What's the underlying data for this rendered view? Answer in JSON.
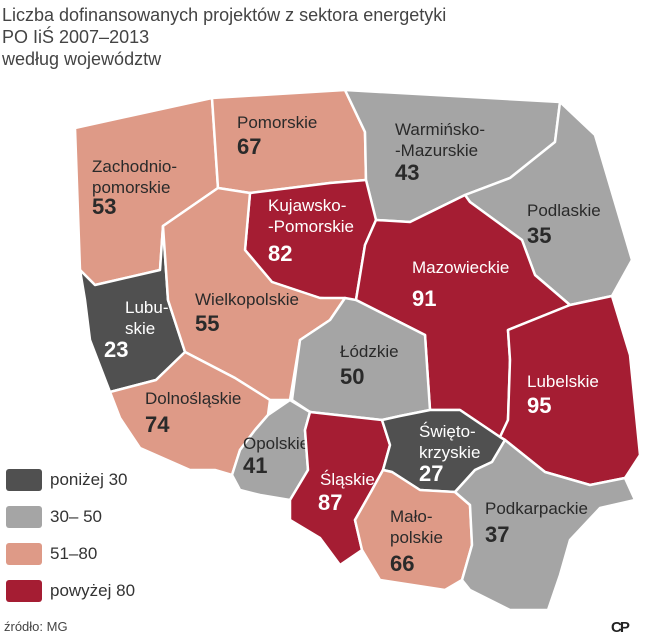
{
  "title": {
    "line1": "Liczba dofinansowanych projektów z sektora energetyki",
    "line2": "PO IiŚ 2007–2013",
    "line3": "według województw"
  },
  "colors": {
    "below_30": "#505050",
    "30_50": "#a5a5a5",
    "51_80": "#de9a87",
    "above_80": "#a51d33"
  },
  "regions": {
    "zachodniopomorskie": {
      "name_lines": [
        "Zachodnio-",
        "pomorskie"
      ],
      "value": "53",
      "category": "51_80"
    },
    "pomorskie": {
      "name_lines": [
        "Pomorskie"
      ],
      "value": "67",
      "category": "51_80"
    },
    "warminsko_mazurskie": {
      "name_lines": [
        "Warmińsko-",
        "-Mazurskie"
      ],
      "value": "43",
      "category": "30_50"
    },
    "podlaskie": {
      "name_lines": [
        "Podlaskie"
      ],
      "value": "35",
      "category": "30_50"
    },
    "kujawsko_pomorskie": {
      "name_lines": [
        "Kujawsko-",
        "-Pomorskie"
      ],
      "value": "82",
      "category": "above_80"
    },
    "mazowieckie": {
      "name_lines": [
        "Mazowieckie"
      ],
      "value": "91",
      "category": "above_80"
    },
    "lubuskie": {
      "name_lines": [
        "Lubu-",
        "skie"
      ],
      "value": "23",
      "category": "below_30"
    },
    "wielkopolskie": {
      "name_lines": [
        "Wielkopolskie"
      ],
      "value": "55",
      "category": "51_80"
    },
    "lodzkie": {
      "name_lines": [
        "Łódzkie"
      ],
      "value": "50",
      "category": "30_50"
    },
    "lubelskie": {
      "name_lines": [
        "Lubelskie"
      ],
      "value": "95",
      "category": "above_80"
    },
    "dolnoslaskie": {
      "name_lines": [
        "Dolnośląskie"
      ],
      "value": "74",
      "category": "51_80"
    },
    "opolskie": {
      "name_lines": [
        "Opolskie"
      ],
      "value": "41",
      "category": "30_50"
    },
    "slaskie": {
      "name_lines": [
        "Śląskie"
      ],
      "value": "87",
      "category": "above_80"
    },
    "swietokrzyskie": {
      "name_lines": [
        "Święto-",
        "krzyskie"
      ],
      "value": "27",
      "category": "below_30"
    },
    "malopolskie": {
      "name_lines": [
        "Mało-",
        "polskie"
      ],
      "value": "66",
      "category": "51_80"
    },
    "podkarpackie": {
      "name_lines": [
        "Podkarpackie"
      ],
      "value": "37",
      "category": "30_50"
    }
  },
  "legend": [
    {
      "label": "poniżej 30",
      "category": "below_30"
    },
    {
      "label": "30– 50",
      "category": "30_50"
    },
    {
      "label": "51–80",
      "category": "51_80"
    },
    {
      "label": "powyżej 80",
      "category": "above_80"
    }
  ],
  "source": "źródło: MG",
  "logo": "CP"
}
